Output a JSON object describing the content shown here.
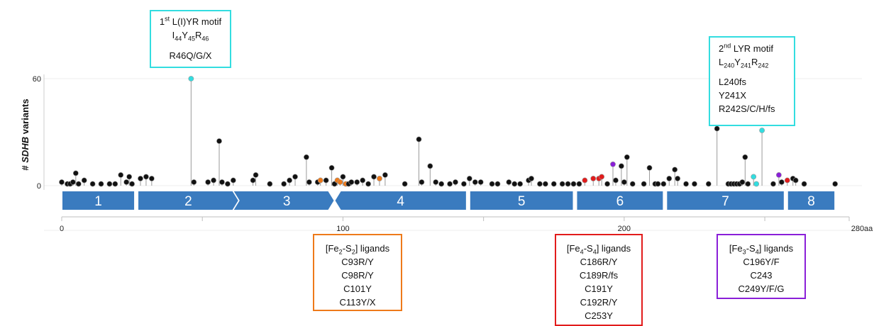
{
  "chart_data": {
    "type": "lollipop",
    "ylabel_parts": [
      "# ",
      "SDHB",
      " variants"
    ],
    "yticks": [
      0,
      60
    ],
    "ylim": [
      0,
      60
    ],
    "xlim": [
      0,
      280
    ],
    "xticks": [
      {
        "value": 0,
        "label": "0"
      },
      {
        "value": 100,
        "label": "100"
      },
      {
        "value": 200,
        "label": "200"
      },
      {
        "value": 280,
        "label": "280aa"
      }
    ],
    "exons": [
      {
        "label": "1",
        "start": 0,
        "end": 26
      },
      {
        "label": "2",
        "start": 27,
        "end": 63
      },
      {
        "label": "3",
        "start": 63,
        "end": 97
      },
      {
        "label": "4",
        "start": 97,
        "end": 144
      },
      {
        "label": "5",
        "start": 145,
        "end": 182
      },
      {
        "label": "6",
        "start": 183,
        "end": 214
      },
      {
        "label": "7",
        "start": 215,
        "end": 257
      },
      {
        "label": "8",
        "start": 258,
        "end": 275
      }
    ],
    "colors": {
      "default": "#111111",
      "lyr_motif": "#33dde0",
      "fe2s2": "#ee7a1a",
      "fe4s4": "#e21b1b",
      "fe3s4": "#8a1fd8",
      "exon": "#3a7bbf",
      "stem": "#9a9a9a"
    },
    "variants": [
      [
        0,
        2,
        "default"
      ],
      [
        2,
        1,
        "default"
      ],
      [
        3,
        1,
        "default"
      ],
      [
        4,
        2,
        "default"
      ],
      [
        5,
        7,
        "default"
      ],
      [
        6,
        1,
        "default"
      ],
      [
        8,
        3,
        "default"
      ],
      [
        11,
        1,
        "default"
      ],
      [
        14,
        1,
        "default"
      ],
      [
        17,
        1,
        "default"
      ],
      [
        19,
        1,
        "default"
      ],
      [
        21,
        6,
        "default"
      ],
      [
        23,
        2,
        "default"
      ],
      [
        24,
        5,
        "default"
      ],
      [
        25,
        1,
        "default"
      ],
      [
        28,
        4,
        "default"
      ],
      [
        30,
        5,
        "default"
      ],
      [
        32,
        4,
        "default"
      ],
      [
        46,
        60,
        "lyr_motif"
      ],
      [
        47,
        2,
        "default"
      ],
      [
        52,
        2,
        "default"
      ],
      [
        54,
        3,
        "default"
      ],
      [
        56,
        25,
        "default"
      ],
      [
        57,
        2,
        "default"
      ],
      [
        59,
        1,
        "default"
      ],
      [
        61,
        3,
        "default"
      ],
      [
        68,
        3,
        "default"
      ],
      [
        69,
        6,
        "default"
      ],
      [
        74,
        1,
        "default"
      ],
      [
        79,
        1,
        "default"
      ],
      [
        81,
        3,
        "default"
      ],
      [
        83,
        5,
        "default"
      ],
      [
        87,
        16,
        "default"
      ],
      [
        88,
        2,
        "default"
      ],
      [
        91,
        2,
        "default"
      ],
      [
        92,
        3,
        "fe2s2"
      ],
      [
        94,
        3,
        "default"
      ],
      [
        96,
        10,
        "default"
      ],
      [
        97,
        1,
        "default"
      ],
      [
        98,
        3,
        "fe2s2"
      ],
      [
        99,
        2,
        "fe2s2"
      ],
      [
        100,
        5,
        "default"
      ],
      [
        101,
        1,
        "fe2s2"
      ],
      [
        102,
        1,
        "default"
      ],
      [
        103,
        2,
        "default"
      ],
      [
        105,
        2,
        "default"
      ],
      [
        107,
        3,
        "default"
      ],
      [
        109,
        1,
        "default"
      ],
      [
        111,
        5,
        "default"
      ],
      [
        113,
        4,
        "fe2s2"
      ],
      [
        115,
        6,
        "default"
      ],
      [
        122,
        1,
        "default"
      ],
      [
        127,
        26,
        "default"
      ],
      [
        128,
        2,
        "default"
      ],
      [
        131,
        11,
        "default"
      ],
      [
        133,
        2,
        "default"
      ],
      [
        135,
        1,
        "default"
      ],
      [
        138,
        1,
        "default"
      ],
      [
        140,
        2,
        "default"
      ],
      [
        143,
        1,
        "default"
      ],
      [
        145,
        4,
        "default"
      ],
      [
        147,
        2,
        "default"
      ],
      [
        149,
        2,
        "default"
      ],
      [
        153,
        1,
        "default"
      ],
      [
        155,
        1,
        "default"
      ],
      [
        159,
        2,
        "default"
      ],
      [
        161,
        1,
        "default"
      ],
      [
        163,
        1,
        "default"
      ],
      [
        166,
        3,
        "default"
      ],
      [
        167,
        4,
        "default"
      ],
      [
        170,
        1,
        "default"
      ],
      [
        172,
        1,
        "default"
      ],
      [
        175,
        1,
        "default"
      ],
      [
        178,
        1,
        "default"
      ],
      [
        180,
        1,
        "default"
      ],
      [
        182,
        1,
        "default"
      ],
      [
        184,
        1,
        "default"
      ],
      [
        186,
        3,
        "fe4s4"
      ],
      [
        189,
        4,
        "fe4s4"
      ],
      [
        191,
        4,
        "fe4s4"
      ],
      [
        192,
        5,
        "fe4s4"
      ],
      [
        194,
        1,
        "default"
      ],
      [
        196,
        12,
        "fe3s4"
      ],
      [
        197,
        3,
        "default"
      ],
      [
        199,
        11,
        "default"
      ],
      [
        200,
        2,
        "default"
      ],
      [
        201,
        16,
        "default"
      ],
      [
        203,
        1,
        "default"
      ],
      [
        207,
        1,
        "default"
      ],
      [
        209,
        10,
        "default"
      ],
      [
        211,
        1,
        "default"
      ],
      [
        212,
        1,
        "default"
      ],
      [
        214,
        1,
        "default"
      ],
      [
        216,
        4,
        "default"
      ],
      [
        218,
        9,
        "default"
      ],
      [
        219,
        4,
        "default"
      ],
      [
        222,
        1,
        "default"
      ],
      [
        225,
        1,
        "default"
      ],
      [
        230,
        1,
        "default"
      ],
      [
        233,
        32,
        "default"
      ],
      [
        237,
        1,
        "default"
      ],
      [
        238,
        1,
        "default"
      ],
      [
        239,
        1,
        "default"
      ],
      [
        240,
        1,
        "default"
      ],
      [
        241,
        1,
        "default"
      ],
      [
        242,
        2,
        "default"
      ],
      [
        243,
        16,
        "default"
      ],
      [
        244,
        1,
        "default"
      ],
      [
        246,
        5,
        "lyr_motif"
      ],
      [
        247,
        1,
        "lyr_motif"
      ],
      [
        249,
        31,
        "lyr_motif"
      ],
      [
        253,
        1,
        "default"
      ],
      [
        255,
        6,
        "fe3s4"
      ],
      [
        256,
        2,
        "default"
      ],
      [
        258,
        3,
        "fe4s4"
      ],
      [
        260,
        4,
        "default"
      ],
      [
        261,
        3,
        "default"
      ],
      [
        264,
        1,
        "default"
      ],
      [
        275,
        1,
        "default"
      ]
    ]
  },
  "annotations": {
    "lyr1": {
      "color": "#33dde0",
      "title_sup": "st",
      "title_num": "1",
      "title_text": " L(I)YR motif",
      "residues": [
        [
          "I",
          "44"
        ],
        [
          "Y",
          "45"
        ],
        [
          "R",
          "46"
        ]
      ],
      "lines": [
        "R46Q/G/X"
      ]
    },
    "lyr2": {
      "color": "#33dde0",
      "title_num": "2",
      "title_sup": "nd",
      "title_text": " LYR motif",
      "residues": [
        [
          "L",
          "240"
        ],
        [
          "Y",
          "241"
        ],
        [
          "R",
          "242"
        ]
      ],
      "lines": [
        "L240fs",
        "Y241X",
        "R242S/C/H/fs"
      ]
    },
    "fe2s2": {
      "color": "#ee7a1a",
      "title_pre": "[Fe",
      "sub1": "2",
      "title_mid": "-S",
      "sub2": "2",
      "title_post": "] ligands",
      "lines": [
        "C93R/Y",
        "C98R/Y",
        "C101Y",
        "C113Y/X"
      ]
    },
    "fe4s4": {
      "color": "#e21b1b",
      "title_pre": "[Fe",
      "sub1": "4",
      "title_mid": "-S",
      "sub2": "4",
      "title_post": "] ligands",
      "lines": [
        "C186R/Y",
        "C189R/fs",
        "C191Y",
        "C192R/Y",
        "C253Y"
      ]
    },
    "fe3s4": {
      "color": "#8a1fd8",
      "title_pre": "[Fe",
      "sub1": "3",
      "title_mid": "-S",
      "sub2": "4",
      "title_post": "] ligands",
      "lines": [
        "C196Y/F",
        "C243",
        "C249Y/F/G"
      ]
    }
  }
}
